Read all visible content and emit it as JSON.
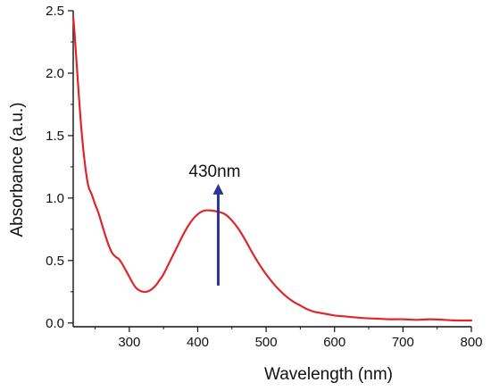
{
  "chart_data": {
    "type": "line",
    "title": "",
    "xlabel": "Wavelength (nm)",
    "ylabel": "Absorbance (a.u.)",
    "xlim": [
      218,
      800
    ],
    "ylim": [
      -0.03,
      2.5
    ],
    "xticks": [
      300,
      400,
      500,
      600,
      700,
      800
    ],
    "xtick_labels": [
      "300",
      "400",
      "500",
      "600",
      "700",
      "800"
    ],
    "yticks": [
      0.0,
      0.5,
      1.0,
      1.5,
      2.0,
      2.5
    ],
    "ytick_labels": [
      "0.0",
      "0.5",
      "1.0",
      "1.5",
      "2.0",
      "2.5"
    ],
    "grid": false,
    "legend": "none",
    "series": [
      {
        "color": "#e0262b",
        "x": [
          218,
          220,
          225,
          230,
          235,
          240,
          245,
          250,
          255,
          260,
          265,
          270,
          275,
          280,
          285,
          290,
          295,
          300,
          305,
          310,
          315,
          320,
          325,
          330,
          335,
          340,
          345,
          350,
          360,
          370,
          380,
          390,
          400,
          410,
          420,
          430,
          440,
          450,
          460,
          470,
          480,
          490,
          500,
          510,
          520,
          530,
          540,
          550,
          560,
          570,
          580,
          590,
          600,
          620,
          640,
          660,
          680,
          700,
          720,
          740,
          760,
          780,
          800
        ],
        "y": [
          2.45,
          2.32,
          1.92,
          1.55,
          1.28,
          1.1,
          1.03,
          0.95,
          0.88,
          0.79,
          0.7,
          0.62,
          0.56,
          0.53,
          0.51,
          0.47,
          0.42,
          0.37,
          0.32,
          0.28,
          0.26,
          0.25,
          0.25,
          0.26,
          0.28,
          0.31,
          0.35,
          0.39,
          0.5,
          0.61,
          0.72,
          0.81,
          0.87,
          0.9,
          0.9,
          0.89,
          0.87,
          0.82,
          0.75,
          0.66,
          0.56,
          0.47,
          0.39,
          0.32,
          0.26,
          0.21,
          0.17,
          0.14,
          0.11,
          0.09,
          0.08,
          0.07,
          0.06,
          0.05,
          0.04,
          0.035,
          0.03,
          0.03,
          0.025,
          0.03,
          0.025,
          0.02,
          0.02
        ]
      }
    ],
    "annotations": [
      {
        "text": "430nm",
        "arrow_x": 430,
        "arrow_from": 0.3,
        "arrow_to": 1.1,
        "arrow_color": "#2c3691"
      }
    ],
    "colors": {
      "axis": "#111111",
      "background": "#ffffff"
    }
  }
}
